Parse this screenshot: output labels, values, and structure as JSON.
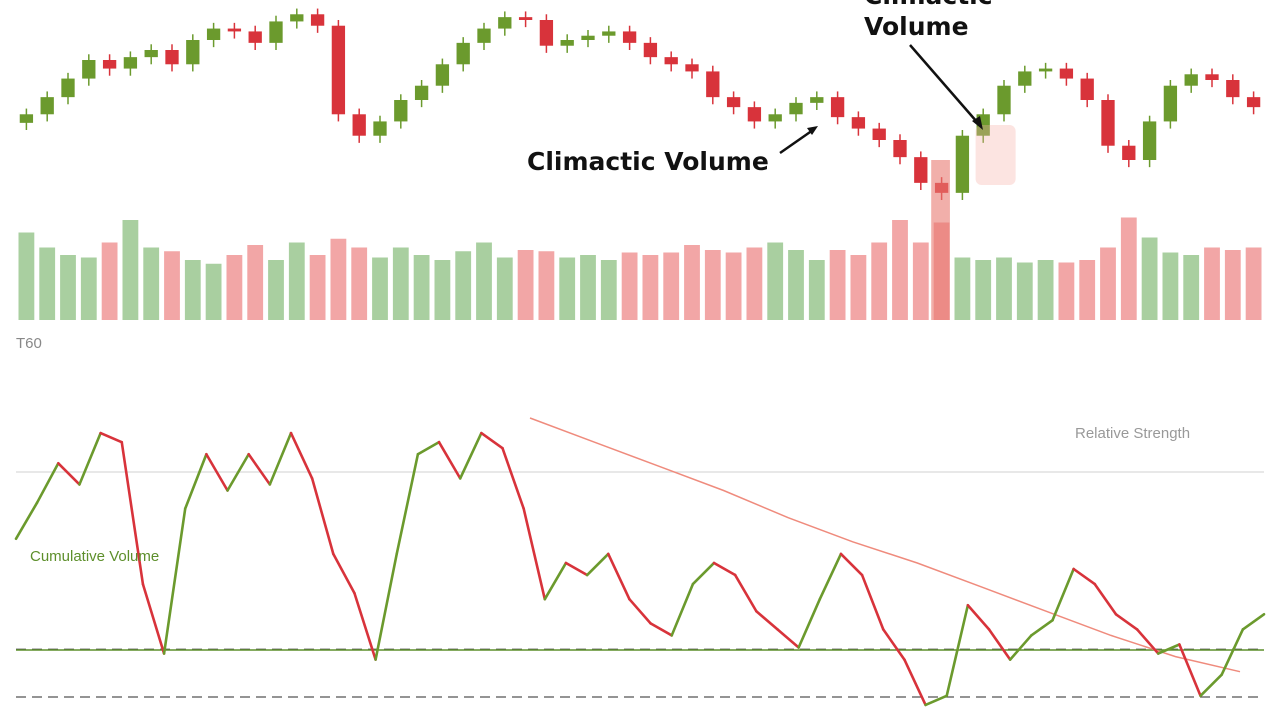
{
  "chart_data": [
    {
      "type": "candlestick",
      "panel": "price",
      "title": "",
      "annotations": [
        {
          "text": "Climactic Volume",
          "target": "volume spike near bar 44"
        },
        {
          "text": "Climactic\nVolume",
          "target": "reversal candle near bar 47"
        }
      ],
      "series": [
        {
          "name": "",
          "close": [
            60,
            72,
            85,
            98,
            92,
            100,
            105,
            95,
            112,
            120,
            118,
            110,
            125,
            130,
            122,
            60,
            45,
            55,
            70,
            80,
            95,
            110,
            120,
            128,
            126,
            108,
            112,
            115,
            118,
            110,
            100,
            95,
            90,
            72,
            65,
            55,
            60,
            68,
            72,
            58,
            50,
            42,
            30,
            12,
            5,
            45,
            60,
            80,
            90,
            92,
            85,
            70,
            38,
            28,
            55,
            80,
            88,
            84,
            72,
            65
          ]
        }
      ],
      "ylim": [
        0,
        140
      ]
    },
    {
      "type": "bar",
      "panel": "volume",
      "label": "T60",
      "series": [
        {
          "name": "",
          "values": [
            70,
            58,
            52,
            50,
            62,
            80,
            58,
            55,
            48,
            45,
            52,
            60,
            48,
            62,
            52,
            65,
            58,
            50,
            58,
            52,
            48,
            55,
            62,
            50,
            56,
            55,
            50,
            52,
            48,
            54,
            52,
            54,
            60,
            56,
            54,
            58,
            62,
            56,
            48,
            56,
            52,
            62,
            80,
            62,
            78,
            50,
            48,
            50,
            46,
            48,
            46,
            48,
            58,
            82,
            66,
            54,
            52,
            58,
            56,
            58
          ]
        }
      ],
      "climactic_index": 44,
      "ylim": [
        0,
        100
      ]
    },
    {
      "type": "line",
      "panel": "oscillator",
      "legend_top_right": "Relative Strength",
      "legend_bottom_left": "Cumulative Volume",
      "series": [
        {
          "name": "",
          "values": [
            60,
            72,
            85,
            78,
            95,
            92,
            45,
            22,
            70,
            88,
            76,
            88,
            78,
            95,
            80,
            55,
            42,
            20,
            55,
            88,
            92,
            80,
            95,
            90,
            70,
            40,
            52,
            48,
            55,
            40,
            32,
            28,
            45,
            52,
            48,
            36,
            30,
            24,
            40,
            55,
            48,
            30,
            20,
            5,
            8,
            38,
            30,
            20,
            28,
            33,
            50,
            45,
            35,
            30,
            22,
            25,
            8,
            15,
            30,
            35
          ]
        },
        {
          "name": "",
          "values": [
            100,
            92,
            84,
            76,
            67,
            59,
            52,
            44,
            36,
            28,
            21,
            16
          ]
        }
      ],
      "levels": [
        75,
        40,
        16
      ],
      "ylim": [
        0,
        100
      ]
    }
  ],
  "colors": {
    "up": "#6b9a2d",
    "down": "#d8333b",
    "volume_up": "#a9cfa0",
    "volume_down": "#f2a6a6",
    "signal": "#ef8b7d",
    "grid": "#d9d9d9",
    "dashed": "#555555",
    "mid_line": "#5d8f2b",
    "annotation": "#111111",
    "faint_text": "#888888",
    "green_text": "#5d8f2b"
  },
  "labels": {
    "annot_1": "Climactic Volume",
    "annot_2_line1": "Climactic",
    "annot_2_line2": "Volume",
    "volume_label": "T60",
    "osc_right": "Relative Strength",
    "osc_left": "Cumulative Volume"
  }
}
